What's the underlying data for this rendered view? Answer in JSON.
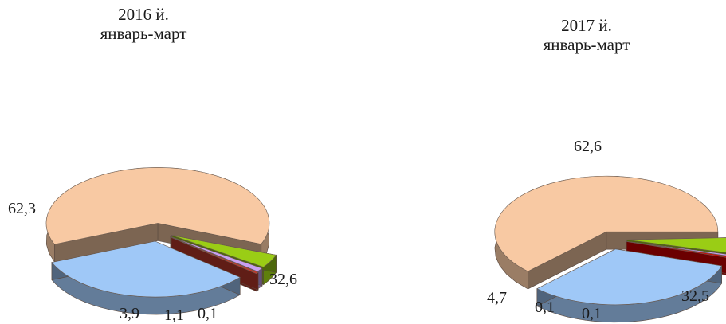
{
  "chart_data": [
    {
      "type": "pie",
      "title": "2016 й.",
      "subtitle": "январь-март",
      "values": [
        62.3,
        32.6,
        0.1,
        1.1,
        3.9
      ],
      "value_labels": [
        "62,3",
        "32,6",
        "0,1",
        "1,1",
        "3,9"
      ],
      "colors": [
        "#f8c9a3",
        "#9fc8f7",
        "#c0392b",
        "#c9a0f2",
        "#9acd15"
      ],
      "exploded": true
    },
    {
      "type": "pie",
      "title": "2017 й.",
      "subtitle": "январь-март",
      "values": [
        62.6,
        32.5,
        0.1,
        0.1,
        4.7
      ],
      "value_labels": [
        "62,6",
        "32,5",
        "0,1",
        "0,1",
        "4,7"
      ],
      "colors": [
        "#f8c9a3",
        "#9fc8f7",
        "#d60000",
        "#c9a0f2",
        "#9acd15"
      ],
      "exploded": true
    }
  ]
}
